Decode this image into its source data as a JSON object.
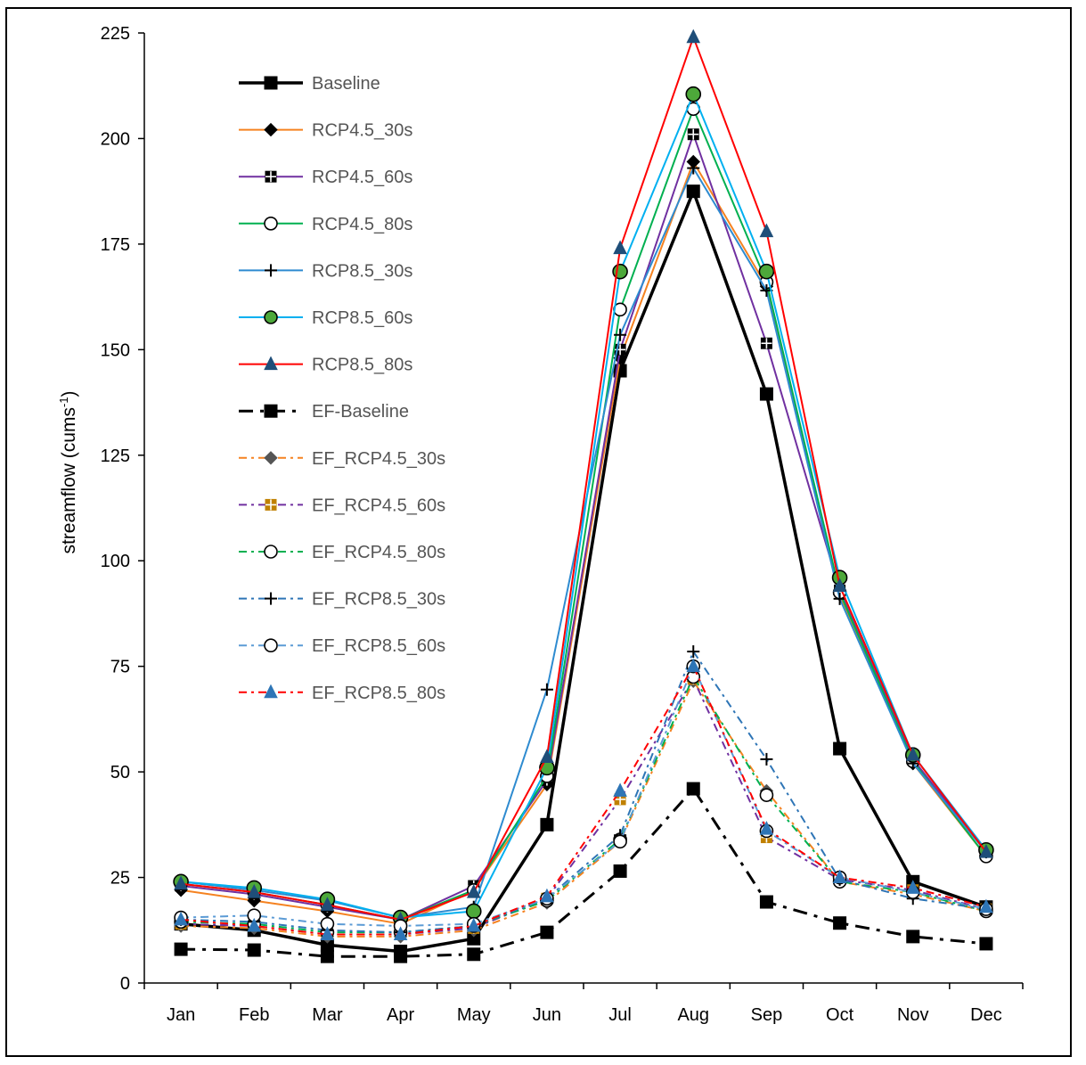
{
  "chart_data": {
    "type": "line",
    "title": "",
    "xlabel": "",
    "ylabel": "streamflow (cums",
    "ylabel_sup": "-1",
    "ylabel_close": ")",
    "ylim": [
      0,
      225
    ],
    "yticks": [
      0,
      25,
      50,
      75,
      100,
      125,
      150,
      175,
      200,
      225
    ],
    "categories": [
      "Jan",
      "Feb",
      "Mar",
      "Apr",
      "May",
      "Jun",
      "Jul",
      "Aug",
      "Sep",
      "Oct",
      "Nov",
      "Dec"
    ],
    "legend_position": "top-left",
    "series": [
      {
        "name": "Baseline",
        "color": "#000000",
        "dash": "solid",
        "width": 3.5,
        "marker": "square",
        "marker_fill": "#000000",
        "marker_stroke": "#000000",
        "values": [
          14,
          12.5,
          9,
          7.5,
          10.5,
          37.5,
          145,
          187.5,
          139.5,
          55.5,
          24,
          18
        ]
      },
      {
        "name": "RCP4.5_30s",
        "color": "#F58220",
        "dash": "solid",
        "width": 2,
        "marker": "diamond",
        "marker_fill": "#000000",
        "marker_stroke": "#000000",
        "values": [
          22,
          19.5,
          17,
          14,
          22,
          47,
          148,
          194.5,
          165,
          92,
          52,
          30
        ]
      },
      {
        "name": "RCP4.5_60s",
        "color": "#7030A0",
        "dash": "solid",
        "width": 2,
        "marker": "squarecross",
        "marker_fill": "#000000",
        "marker_stroke": "#000000",
        "values": [
          23,
          21,
          18,
          15,
          23,
          48,
          150,
          201,
          151.5,
          93,
          53,
          31
        ]
      },
      {
        "name": "RCP4.5_80s",
        "color": "#00B050",
        "dash": "solid",
        "width": 2,
        "marker": "circle",
        "marker_fill": "#ffffff",
        "marker_stroke": "#000000",
        "values": [
          23.5,
          21.5,
          18.5,
          15,
          22,
          49,
          159.5,
          207,
          166,
          92.5,
          52.5,
          30
        ]
      },
      {
        "name": "RCP8.5_30s",
        "color": "#2E8BD0",
        "dash": "solid",
        "width": 2,
        "marker": "plus",
        "marker_fill": "none",
        "marker_stroke": "#000000",
        "values": [
          24,
          22,
          19.5,
          15.5,
          18,
          69.5,
          153.5,
          193,
          164,
          91,
          52,
          31
        ]
      },
      {
        "name": "RCP8.5_60s",
        "color": "#00B0F0",
        "dash": "solid",
        "width": 2,
        "marker": "circle",
        "marker_fill": "#4DA83A",
        "marker_stroke": "#000000",
        "values": [
          24,
          22.5,
          19.8,
          15.5,
          17,
          51,
          168.5,
          210.5,
          168.5,
          96,
          54,
          31.5
        ]
      },
      {
        "name": "RCP8.5_80s",
        "color": "#FF0000",
        "dash": "solid",
        "width": 2,
        "marker": "triangle",
        "marker_fill": "#1F4E79",
        "marker_stroke": "#1F4E79",
        "values": [
          23.5,
          21.5,
          18.5,
          15,
          21.5,
          53.5,
          174,
          224,
          178,
          94,
          54,
          31
        ]
      },
      {
        "name": "EF-Baseline",
        "color": "#000000",
        "dash": "dashdot",
        "width": 3,
        "marker": "square",
        "marker_fill": "#000000",
        "marker_stroke": "#000000",
        "values": [
          8,
          7.8,
          6.3,
          6.3,
          6.8,
          12,
          26.5,
          46,
          19.2,
          14.2,
          11,
          9.3
        ]
      },
      {
        "name": "EF_RCP4.5_30s",
        "color": "#F58220",
        "dash": "dashdot",
        "width": 2,
        "marker": "diamond",
        "marker_fill": "#555555",
        "marker_stroke": "#555555",
        "values": [
          13.5,
          13,
          11,
          11,
          12.5,
          19,
          33.5,
          71.5,
          45.5,
          24,
          21,
          17
        ]
      },
      {
        "name": "EF_RCP4.5_60s",
        "color": "#7030A0",
        "dash": "dashdot",
        "width": 2,
        "marker": "squarecross",
        "marker_fill": "#C08000",
        "marker_stroke": "#C08000",
        "values": [
          14,
          13.5,
          11.5,
          11.5,
          13,
          20,
          43.5,
          72,
          34.5,
          24.5,
          22,
          17.5
        ]
      },
      {
        "name": "EF_RCP4.5_80s",
        "color": "#00B050",
        "dash": "dashdot",
        "width": 2,
        "marker": "circle",
        "marker_fill": "#ffffff",
        "marker_stroke": "#000000",
        "values": [
          14.5,
          14,
          12,
          12,
          13.5,
          19.5,
          34,
          72.5,
          44.5,
          24,
          21.5,
          17
        ]
      },
      {
        "name": "EF_RCP8.5_30s",
        "color": "#2E75B6",
        "dash": "dashdot",
        "width": 2,
        "marker": "plus",
        "marker_fill": "none",
        "marker_stroke": "#000000",
        "values": [
          15,
          14.5,
          12.5,
          12,
          13.5,
          20,
          35,
          78.5,
          53,
          24.5,
          20,
          17.5
        ]
      },
      {
        "name": "EF_RCP8.5_60s",
        "color": "#5B9BD5",
        "dash": "dashdot",
        "width": 2,
        "marker": "circle",
        "marker_fill": "#ffffff",
        "marker_stroke": "#000000",
        "values": [
          15.5,
          16,
          14,
          13.5,
          14,
          20,
          33.5,
          75,
          36,
          25,
          21.5,
          17.5
        ]
      },
      {
        "name": "EF_RCP8.5_80s",
        "color": "#FF0000",
        "dash": "dashdot",
        "width": 2,
        "marker": "triangle",
        "marker_fill": "#2E75B6",
        "marker_stroke": "#2E75B6",
        "values": [
          15,
          13.5,
          11.5,
          11.5,
          13.5,
          20.5,
          45.5,
          75,
          36.5,
          25,
          22.5,
          18
        ]
      }
    ]
  }
}
